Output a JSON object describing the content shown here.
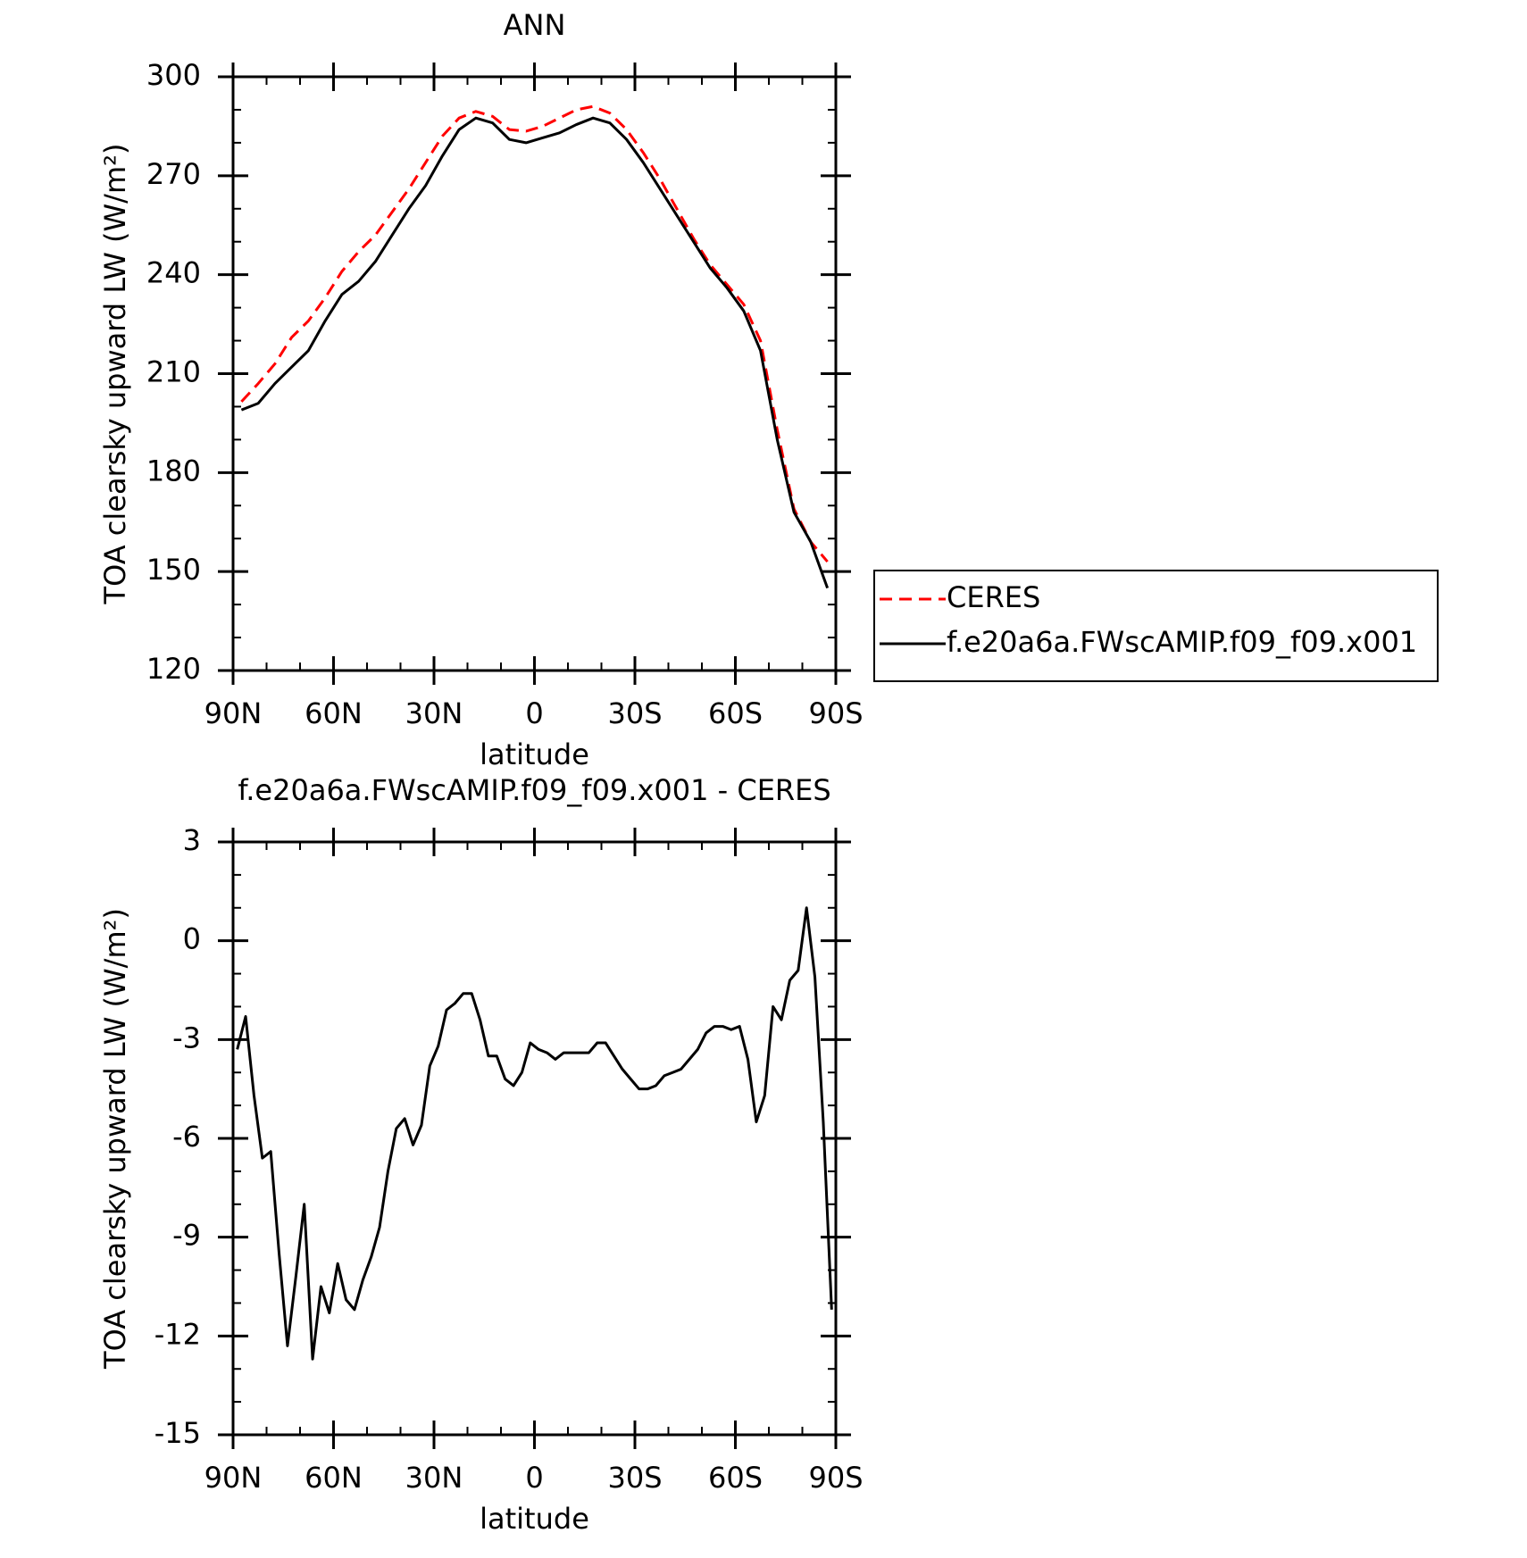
{
  "chart_data": [
    {
      "type": "line",
      "title": "ANN",
      "xlabel": "latitude",
      "ylabel": "TOA clearsky upward LW (W/m²)",
      "x": [
        87.5,
        82.5,
        77.5,
        72.5,
        67.5,
        62.5,
        57.5,
        52.5,
        47.5,
        42.5,
        37.5,
        32.5,
        27.5,
        22.5,
        17.5,
        12.5,
        7.5,
        2.5,
        -2.5,
        -7.5,
        -12.5,
        -17.5,
        -22.5,
        -27.5,
        -32.5,
        -37.5,
        -42.5,
        -47.5,
        -52.5,
        -57.5,
        -62.5,
        -67.5,
        -72.5,
        -77.5,
        -82.5,
        -87.5
      ],
      "series": [
        {
          "name": "CERES",
          "color": "#ff0000",
          "linestyle": "dashed",
          "values": [
            201.5,
            207,
            213,
            221,
            226,
            233,
            241,
            247,
            252,
            259,
            266,
            274,
            282,
            287.5,
            289.5,
            288,
            284,
            283.5,
            285,
            287.5,
            290,
            291,
            289,
            284,
            277,
            269,
            260,
            251,
            243,
            237,
            231,
            220,
            193,
            169,
            159,
            153
          ]
        },
        {
          "name": "f.e20a6a.FWscAMIP.f09_f09.x001",
          "color": "#000000",
          "linestyle": "solid",
          "values": [
            199,
            201,
            207,
            212,
            217,
            226,
            234,
            238,
            244,
            252,
            260,
            267,
            276,
            284,
            287.5,
            286,
            281,
            280,
            281.5,
            283,
            285.5,
            287.5,
            286,
            281,
            274,
            266,
            258,
            250,
            242,
            236,
            229,
            217,
            190,
            168,
            159,
            145
          ]
        }
      ],
      "xlim": [
        90,
        -90
      ],
      "xticks": [
        {
          "value": 90,
          "label": "90N"
        },
        {
          "value": 60,
          "label": "60N"
        },
        {
          "value": 30,
          "label": "30N"
        },
        0,
        {
          "value": -30,
          "label": "30S"
        },
        {
          "value": -60,
          "label": "60S"
        },
        {
          "value": -90,
          "label": "90S"
        }
      ],
      "xminorticks": [
        80,
        70,
        50,
        40,
        20,
        10,
        -10,
        -20,
        -40,
        -50,
        -70,
        -80
      ],
      "ylim": [
        120,
        300
      ],
      "yticks": [
        120,
        150,
        180,
        210,
        240,
        270,
        300
      ],
      "yminorticks": [
        130,
        140,
        160,
        170,
        190,
        200,
        220,
        230,
        250,
        260,
        280,
        290
      ],
      "legend": "right"
    },
    {
      "type": "line",
      "title": "f.e20a6a.FWscAMIP.f09_f09.x001 - CERES",
      "xlabel": "latitude",
      "ylabel": "TOA clearsky upward LW (W/m²)",
      "x": [
        88.75,
        86.25,
        83.75,
        81.25,
        78.75,
        76.25,
        73.75,
        71.25,
        68.75,
        66.25,
        63.75,
        61.25,
        58.75,
        56.25,
        53.75,
        51.25,
        48.75,
        46.25,
        43.75,
        41.25,
        38.75,
        36.25,
        33.75,
        31.25,
        28.75,
        26.25,
        23.75,
        21.25,
        18.75,
        16.25,
        13.75,
        11.25,
        8.75,
        6.25,
        3.75,
        1.25,
        -1.25,
        -3.75,
        -6.25,
        -8.75,
        -11.25,
        -13.75,
        -16.25,
        -18.75,
        -21.25,
        -23.75,
        -26.25,
        -28.75,
        -31.25,
        -33.75,
        -36.25,
        -38.75,
        -41.25,
        -43.75,
        -46.25,
        -48.75,
        -51.25,
        -53.75,
        -56.25,
        -58.75,
        -61.25,
        -63.75,
        -66.25,
        -68.75,
        -71.25,
        -73.75,
        -76.25,
        -78.75,
        -81.25,
        -83.75,
        -86.25,
        -88.75
      ],
      "series": [
        {
          "color": "#000000",
          "linestyle": "solid",
          "values": [
            -3.3,
            -2.3,
            -4.7,
            -6.6,
            -6.4,
            -9.5,
            -12.3,
            -10.2,
            -8.0,
            -12.7,
            -10.5,
            -11.3,
            -9.8,
            -10.9,
            -11.2,
            -10.3,
            -9.6,
            -8.7,
            -7.0,
            -5.7,
            -5.4,
            -6.2,
            -5.6,
            -3.8,
            -3.2,
            -2.1,
            -1.9,
            -1.6,
            -1.6,
            -2.4,
            -3.5,
            -3.5,
            -4.2,
            -4.4,
            -4.0,
            -3.1,
            -3.3,
            -3.4,
            -3.6,
            -3.4,
            -3.4,
            -3.4,
            -3.4,
            -3.1,
            -3.1,
            -3.5,
            -3.9,
            -4.2,
            -4.5,
            -4.5,
            -4.4,
            -4.1,
            -4.0,
            -3.9,
            -3.6,
            -3.3,
            -2.8,
            -2.6,
            -2.6,
            -2.7,
            -2.6,
            -3.6,
            -5.5,
            -4.7,
            -2.0,
            -2.4,
            -1.2,
            -0.9,
            1.0,
            -1.1,
            -5.5,
            -11.2
          ]
        }
      ],
      "xlim": [
        90,
        -90
      ],
      "xticks": [
        {
          "value": 90,
          "label": "90N"
        },
        {
          "value": 60,
          "label": "60N"
        },
        {
          "value": 30,
          "label": "30N"
        },
        0,
        {
          "value": -30,
          "label": "30S"
        },
        {
          "value": -60,
          "label": "60S"
        },
        {
          "value": -90,
          "label": "90S"
        }
      ],
      "xminorticks": [
        80,
        70,
        50,
        40,
        20,
        10,
        -10,
        -20,
        -40,
        -50,
        -70,
        -80
      ],
      "ylim": [
        -15,
        3
      ],
      "yticks": [
        -15,
        -12,
        -9,
        -6,
        -3,
        0,
        3
      ],
      "yminorticks": [
        -14,
        -13,
        -11,
        -10,
        -8,
        -7,
        -5,
        -4,
        -2,
        -1,
        1,
        2
      ]
    }
  ]
}
